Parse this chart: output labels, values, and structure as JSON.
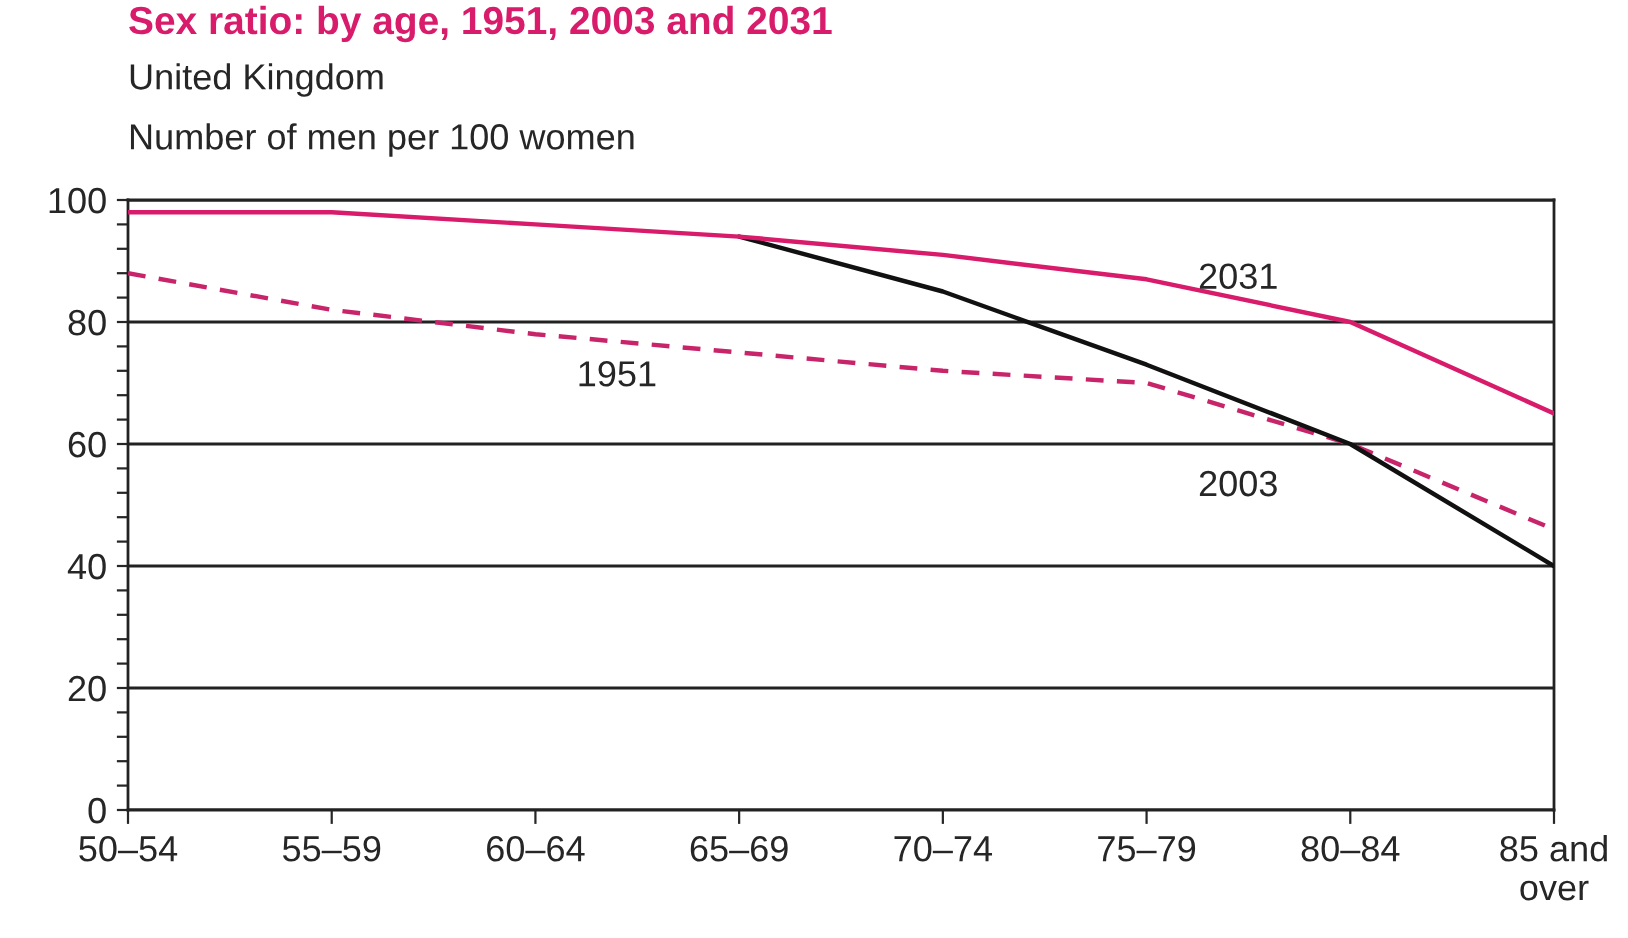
{
  "chart_data": {
    "type": "line",
    "title": "Sex ratio: by age, 1951, 2003 and 2031",
    "subtitle": "United Kingdom",
    "ylabel": "Number of men per 100 women",
    "categories": [
      "50–54",
      "55–59",
      "60–64",
      "65–69",
      "70–74",
      "75–79",
      "80–84",
      "85 and\nover"
    ],
    "series": [
      {
        "name": "2031",
        "color": "#d81b6a",
        "values": [
          98,
          98,
          96,
          94,
          91,
          87,
          80,
          65
        ]
      },
      {
        "name": "2003",
        "color": "#111111",
        "values": [
          null,
          null,
          null,
          94,
          85,
          73,
          60,
          40
        ]
      },
      {
        "name": "1951",
        "color": "#c8246a",
        "line_style": "dashed",
        "values": [
          88,
          82,
          78,
          75,
          72,
          70,
          60,
          46
        ]
      }
    ],
    "ylim": [
      0,
      100
    ],
    "yticks": [
      0,
      {
        "value": 4,
        "label": null
      },
      {
        "value": 8,
        "label": null
      },
      {
        "value": 12,
        "label": null
      },
      {
        "value": 16,
        "label": null
      },
      20,
      {
        "value": 24,
        "label": null
      },
      {
        "value": 28,
        "label": null
      },
      {
        "value": 32,
        "label": null
      },
      {
        "value": 36,
        "label": null
      },
      40,
      {
        "value": 44,
        "label": null
      },
      {
        "value": 48,
        "label": null
      },
      {
        "value": 52,
        "label": null
      },
      {
        "value": 56,
        "label": null
      },
      60,
      {
        "value": 64,
        "label": null
      },
      {
        "value": 68,
        "label": null
      },
      {
        "value": 72,
        "label": null
      },
      {
        "value": 76,
        "label": null
      },
      80,
      {
        "value": 84,
        "label": null
      },
      {
        "value": 88,
        "label": null
      },
      {
        "value": 92,
        "label": null
      },
      {
        "value": 96,
        "label": null
      },
      100
    ],
    "grid": "y",
    "legend": false,
    "marker": "none",
    "line_style": "solid"
  }
}
